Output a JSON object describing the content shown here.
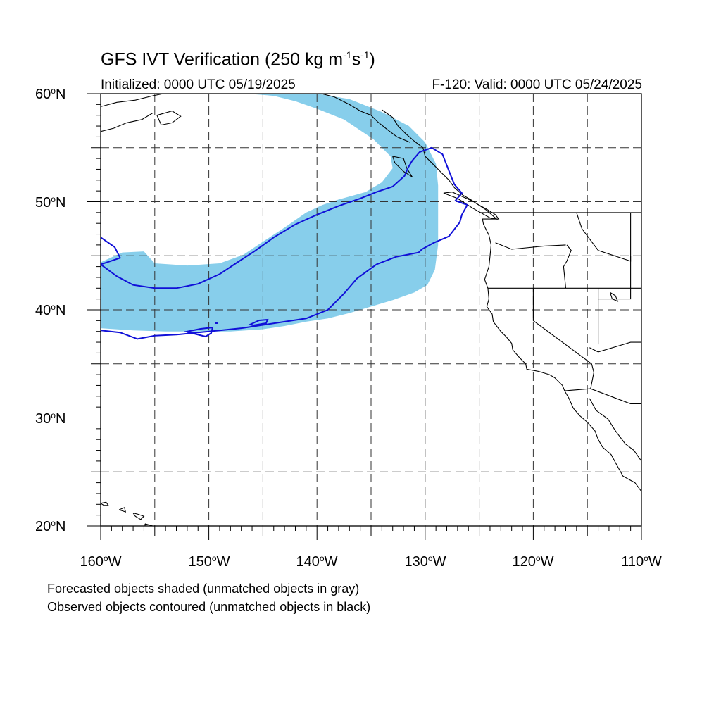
{
  "title": {
    "main": "GFS IVT Verification (250 kg m",
    "exp1": "-1",
    "mid": "s",
    "exp2": "-1",
    "end": ")"
  },
  "init_text": "Initialized: 0000 UTC 05/19/2025",
  "valid_text": "F-120: Valid: 0000 UTC 05/24/2025",
  "lat_labels": [
    {
      "deg": "60",
      "hem": "N"
    },
    {
      "deg": "50",
      "hem": "N"
    },
    {
      "deg": "40",
      "hem": "N"
    },
    {
      "deg": "30",
      "hem": "N"
    },
    {
      "deg": "20",
      "hem": "N"
    }
  ],
  "lon_labels": [
    {
      "deg": "160",
      "hem": "W"
    },
    {
      "deg": "150",
      "hem": "W"
    },
    {
      "deg": "140",
      "hem": "W"
    },
    {
      "deg": "130",
      "hem": "W"
    },
    {
      "deg": "120",
      "hem": "W"
    },
    {
      "deg": "110",
      "hem": "W"
    }
  ],
  "caption_line1": "Forecasted objects shaded (unmatched objects in gray)",
  "caption_line2": "Observed objects contoured (unmatched objects in black)",
  "colors": {
    "forecast_fill": "#87ceeb",
    "observed_contour": "#1010d8",
    "coastline": "#000000",
    "grid": "#333333"
  },
  "chart_data": {
    "type": "map",
    "projection": "cylindrical equidistant",
    "lon_range": [
      -160,
      -110
    ],
    "lat_range": [
      20,
      60
    ],
    "grid_lon": [
      -155,
      -150,
      -145,
      -140,
      -135,
      -130,
      -125,
      -120,
      -115
    ],
    "grid_lat": [
      25,
      30,
      35,
      40,
      45,
      50,
      55
    ],
    "forecast_object_outline": [
      [
        -146.5,
        60
      ],
      [
        -140,
        60
      ],
      [
        -137,
        59.5
      ],
      [
        -134,
        58.3
      ],
      [
        -131.5,
        57
      ],
      [
        -130,
        55.5
      ],
      [
        -129,
        53.5
      ],
      [
        -128.8,
        51.5
      ],
      [
        -128.8,
        49
      ],
      [
        -128.8,
        46
      ],
      [
        -129.1,
        43.7
      ],
      [
        -129.8,
        42.3
      ],
      [
        -131,
        41.6
      ],
      [
        -133,
        40.9
      ],
      [
        -135,
        40.3
      ],
      [
        -137,
        39.7
      ],
      [
        -139,
        39.2
      ],
      [
        -141,
        38.9
      ],
      [
        -143,
        38.5
      ],
      [
        -145,
        38.2
      ],
      [
        -148,
        38
      ],
      [
        -151,
        38
      ],
      [
        -154,
        38
      ],
      [
        -157,
        38.1
      ],
      [
        -160,
        38.3
      ],
      [
        -160,
        44.4
      ],
      [
        -158,
        45.3
      ],
      [
        -156,
        45.4
      ],
      [
        -155,
        44.3
      ],
      [
        -152,
        44.1
      ],
      [
        -149,
        44.3
      ],
      [
        -146.8,
        45.1
      ],
      [
        -145,
        46.3
      ],
      [
        -143,
        47.6
      ],
      [
        -141,
        49
      ],
      [
        -139.5,
        49.7
      ],
      [
        -138,
        50.2
      ],
      [
        -135.5,
        50.9
      ],
      [
        -134,
        51.8
      ],
      [
        -133,
        53.1
      ],
      [
        -133.2,
        54.2
      ],
      [
        -134.8,
        55.8
      ],
      [
        -137.5,
        57.6
      ],
      [
        -140,
        58.6
      ],
      [
        -142,
        59.3
      ],
      [
        -144,
        59.8
      ],
      [
        -146.5,
        60
      ]
    ],
    "observed_object_contour": [
      [
        -160,
        46.7
      ],
      [
        -158.7,
        45.8
      ],
      [
        -158.2,
        44.8
      ],
      [
        -160,
        44.2
      ],
      [
        -158.5,
        43.1
      ],
      [
        -157,
        42.3
      ],
      [
        -155,
        42
      ],
      [
        -153,
        42
      ],
      [
        -151,
        42.4
      ],
      [
        -149,
        43.3
      ],
      [
        -147.5,
        44.3
      ],
      [
        -145.8,
        45.4
      ],
      [
        -144,
        46.7
      ],
      [
        -142,
        47.9
      ],
      [
        -140,
        48.8
      ],
      [
        -138,
        49.6
      ],
      [
        -136,
        50.3
      ],
      [
        -134.5,
        50.9
      ],
      [
        -133,
        51.4
      ],
      [
        -131.9,
        52.4
      ],
      [
        -131.6,
        53.1
      ],
      [
        -131.2,
        53.8
      ],
      [
        -130.5,
        54.6
      ],
      [
        -129.4,
        55
      ],
      [
        -128.4,
        54.4
      ],
      [
        -127.9,
        53.1
      ],
      [
        -127.3,
        51.6
      ],
      [
        -126.6,
        50.8
      ],
      [
        -127.2,
        50.1
      ],
      [
        -126.1,
        49.7
      ],
      [
        -126.6,
        48.8
      ],
      [
        -126.8,
        48.1
      ],
      [
        -127.8,
        46.8
      ],
      [
        -129.2,
        46.2
      ],
      [
        -130.3,
        45.6
      ],
      [
        -130.6,
        45.3
      ],
      [
        -132.7,
        44.9
      ],
      [
        -134.5,
        44.2
      ],
      [
        -136.3,
        42.9
      ],
      [
        -137.5,
        41.5
      ],
      [
        -139,
        40
      ],
      [
        -141,
        39.2
      ],
      [
        -143,
        38.9
      ],
      [
        -145,
        38.6
      ],
      [
        -147,
        38.3
      ],
      [
        -149,
        38.1
      ],
      [
        -151,
        37.9
      ],
      [
        -153,
        37.7
      ],
      [
        -155,
        37.6
      ],
      [
        -156.6,
        37.3
      ],
      [
        -158.2,
        37.9
      ],
      [
        -160,
        38.1
      ]
    ]
  }
}
